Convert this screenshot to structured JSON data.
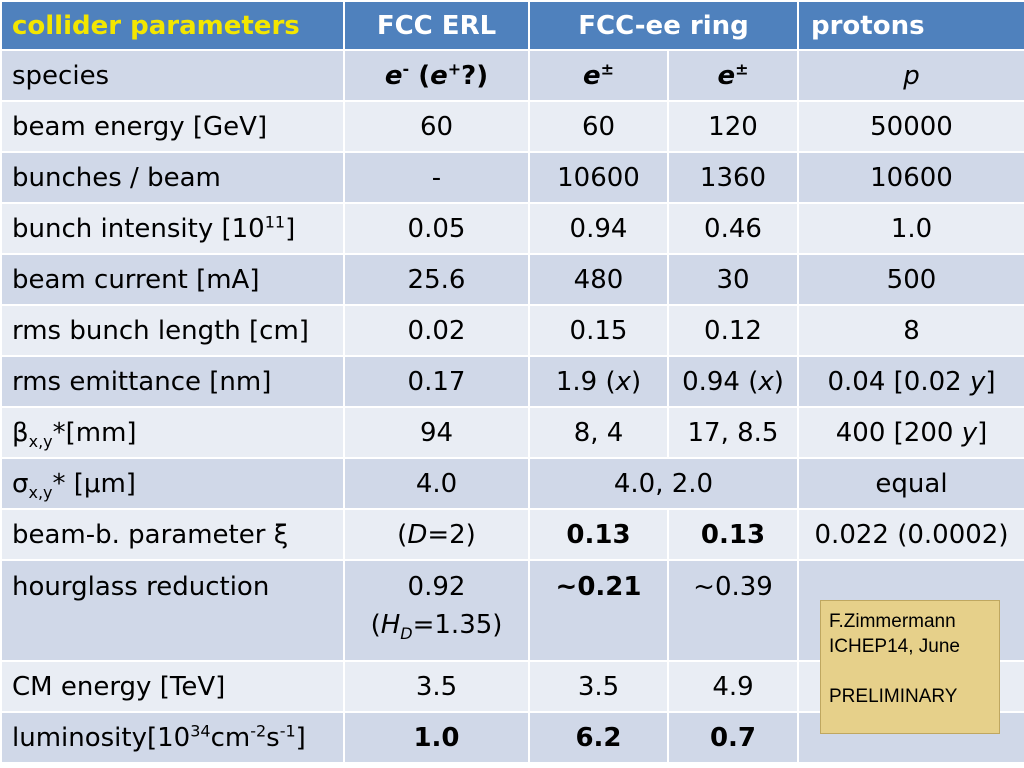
{
  "header": {
    "title": "collider parameters",
    "col_erl": "FCC ERL",
    "col_ring": "FCC-ee ring",
    "col_protons": "protons"
  },
  "rows": {
    "species": {
      "label": "species",
      "erl_e": "e",
      "erl_sup1": "-",
      "erl_rest1": " (",
      "erl_e2": "e",
      "erl_sup2": "+",
      "erl_rest2": "?)",
      "ring60_e": "e",
      "ring60_sup": "±",
      "ring120_e": "e",
      "ring120_sup": "±",
      "protons": "p"
    },
    "beam_energy": {
      "label": "beam energy  [GeV]",
      "erl": "60",
      "ring60": "60",
      "ring120": "120",
      "protons": "50000"
    },
    "bunches": {
      "label": "bunches / beam",
      "erl": "-",
      "ring60": "10600",
      "ring120": "1360",
      "protons": "10600"
    },
    "intensity": {
      "label_pre": "bunch intensity [10",
      "label_sup": "11",
      "label_post": "]",
      "erl": "0.05",
      "ring60": "0.94",
      "ring120": "0.46",
      "protons": "1.0"
    },
    "current": {
      "label": "beam current [mA]",
      "erl": "25.6",
      "ring60": "480",
      "ring120": "30",
      "protons": "500"
    },
    "bunch_length": {
      "label": "rms bunch length [cm]",
      "erl": "0.02",
      "ring60": "0.15",
      "ring120": "0.12",
      "protons": "8"
    },
    "emittance": {
      "label": "rms emittance [nm]",
      "erl": "0.17",
      "ring60_pre": "1.9 (",
      "ring60_var": "x",
      "ring60_post": ")",
      "ring120_pre": "0.94 (",
      "ring120_var": "x",
      "ring120_post": ")",
      "protons_pre": "0.04 [0.02 ",
      "protons_var": "y",
      "protons_post": "]"
    },
    "beta": {
      "label_sym": "β",
      "label_sub": "x,y",
      "label_post": "*[mm]",
      "erl": "94",
      "ring60": "8, 4",
      "ring120": "17, 8.5",
      "protons_pre": "400 [200 ",
      "protons_var": "y",
      "protons_post": "]"
    },
    "sigma": {
      "label_sym": "σ",
      "label_sub": "x,y",
      "label_post": "* [μm]",
      "erl": "4.0",
      "ring": "4.0, 2.0",
      "protons": "equal"
    },
    "beam_beam": {
      "label": "beam-b. parameter ξ",
      "erl_pre": "(",
      "erl_var": "D",
      "erl_post": "=2)",
      "ring60": "0.13",
      "ring120": "0.13",
      "protons": "0.022 (0.0002)"
    },
    "hourglass": {
      "label": "hourglass reduction",
      "erl_line1": "0.92",
      "erl_pre": "(",
      "erl_var": "H",
      "erl_sub": "D",
      "erl_post": "=1.35)",
      "ring60": "~0.21",
      "ring120": "~0.39"
    },
    "cm_energy": {
      "label": "CM energy [TeV]",
      "erl": "3.5",
      "ring60": "3.5",
      "ring120": "4.9"
    },
    "luminosity": {
      "label_pre": "luminosity[10",
      "label_sup1": "34",
      "label_mid1": "cm",
      "label_sup2": "-2",
      "label_mid2": "s",
      "label_sup3": "-1",
      "label_post": "]",
      "erl": "1.0",
      "ring60": "6.2",
      "ring120": "0.7"
    }
  },
  "note": {
    "line1": "F.Zimmermann",
    "line2": "ICHEP14, June",
    "line3": "PRELIMINARY"
  },
  "colors": {
    "header_bg": "#4f81bd",
    "title_text": "#f3e600",
    "row_dark": "#d0d8e8",
    "row_light": "#e9edf4",
    "highlight": "#ff0000",
    "note_bg": "#e6d08a"
  }
}
